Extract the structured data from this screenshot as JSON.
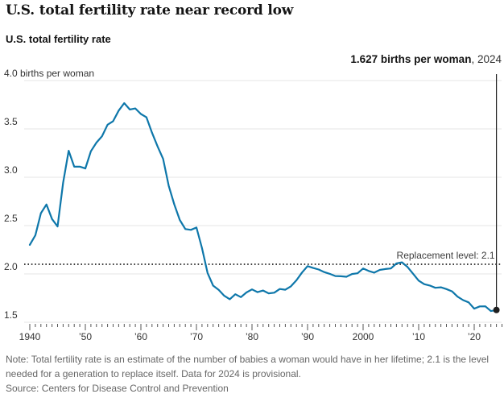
{
  "header": {
    "title": "U.S. total fertility rate near record low",
    "subtitle": "U.S. total fertility rate"
  },
  "annotation": {
    "value_label": "1.627 births per woman",
    "year_label": ", 2024"
  },
  "footer": {
    "note": "Note: Total fertility rate is an estimate of the number of babies a woman would have in her lifetime; 2.1 is the level needed for a generation to replace itself. Data for 2024 is provisional.",
    "source": "Source: Centers for Disease Control and Prevention"
  },
  "colors": {
    "line": "#0e77aa",
    "grid": "#e4e4e4",
    "dotted_line": "#222222",
    "tick": "#555555",
    "marker_line": "#222222",
    "end_dot": "#1f1f1f"
  },
  "chart_data": {
    "type": "line",
    "title": "U.S. total fertility rate near record low",
    "subtitle": "U.S. total fertility rate",
    "ylabel": "births per woman",
    "ylim": [
      1.5,
      4.0
    ],
    "xlim": [
      1940,
      2025
    ],
    "grid": true,
    "y_ticks": [
      {
        "value": 4.0,
        "label": "4.0 births per woman"
      },
      {
        "value": 3.5,
        "label": "3.5"
      },
      {
        "value": 3.0,
        "label": "3.0"
      },
      {
        "value": 2.5,
        "label": "2.5"
      },
      {
        "value": 2.0,
        "label": "2.0"
      },
      {
        "value": 1.5,
        "label": "1.5"
      }
    ],
    "x_ticks": [
      {
        "year": 1940,
        "label": "1940"
      },
      {
        "year": 1950,
        "label": "’50"
      },
      {
        "year": 1960,
        "label": "’60"
      },
      {
        "year": 1970,
        "label": "’70"
      },
      {
        "year": 1980,
        "label": "’80"
      },
      {
        "year": 1990,
        "label": "’90"
      },
      {
        "year": 2000,
        "label": "2000"
      },
      {
        "year": 2010,
        "label": "’10"
      },
      {
        "year": 2020,
        "label": "’20"
      }
    ],
    "replacement_line": {
      "value": 2.1,
      "label": "Replacement level: 2.1"
    },
    "endpoint": {
      "year": 2024,
      "value": 1.627
    },
    "x": [
      1940,
      1941,
      1942,
      1943,
      1944,
      1945,
      1946,
      1947,
      1948,
      1949,
      1950,
      1951,
      1952,
      1953,
      1954,
      1955,
      1956,
      1957,
      1958,
      1959,
      1960,
      1961,
      1962,
      1963,
      1964,
      1965,
      1966,
      1967,
      1968,
      1969,
      1970,
      1971,
      1972,
      1973,
      1974,
      1975,
      1976,
      1977,
      1978,
      1979,
      1980,
      1981,
      1982,
      1983,
      1984,
      1985,
      1986,
      1987,
      1988,
      1989,
      1990,
      1991,
      1992,
      1993,
      1994,
      1995,
      1996,
      1997,
      1998,
      1999,
      2000,
      2001,
      2002,
      2003,
      2004,
      2005,
      2006,
      2007,
      2008,
      2009,
      2010,
      2011,
      2012,
      2013,
      2014,
      2015,
      2016,
      2017,
      2018,
      2019,
      2020,
      2021,
      2022,
      2023,
      2024
    ],
    "values": [
      2.301,
      2.399,
      2.628,
      2.718,
      2.568,
      2.491,
      2.943,
      3.274,
      3.109,
      3.11,
      3.091,
      3.269,
      3.358,
      3.424,
      3.543,
      3.58,
      3.689,
      3.767,
      3.701,
      3.712,
      3.654,
      3.62,
      3.461,
      3.319,
      3.19,
      2.913,
      2.721,
      2.558,
      2.464,
      2.456,
      2.48,
      2.267,
      2.01,
      1.879,
      1.835,
      1.774,
      1.738,
      1.79,
      1.76,
      1.808,
      1.84,
      1.812,
      1.828,
      1.799,
      1.806,
      1.844,
      1.837,
      1.872,
      1.934,
      2.014,
      2.081,
      2.062,
      2.046,
      2.019,
      2.001,
      1.978,
      1.976,
      1.971,
      1.999,
      2.007,
      2.056,
      2.031,
      2.013,
      2.042,
      2.051,
      2.057,
      2.108,
      2.12,
      2.072,
      2.002,
      1.931,
      1.894,
      1.88,
      1.857,
      1.862,
      1.843,
      1.82,
      1.765,
      1.729,
      1.706,
      1.641,
      1.664,
      1.665,
      1.616,
      1.627
    ]
  }
}
